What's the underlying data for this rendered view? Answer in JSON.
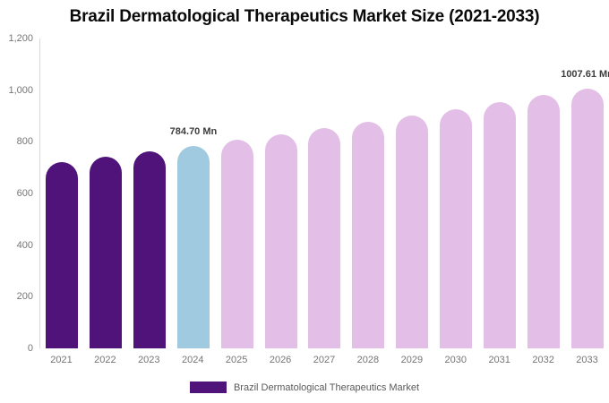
{
  "page": {
    "background": "#ffffff"
  },
  "chart_data": {
    "type": "bar",
    "title": "Brazil Dermatological Therapeutics Market Size (2021-2033)",
    "unit": "Mn",
    "categories": [
      "2021",
      "2022",
      "2023",
      "2024",
      "2025",
      "2026",
      "2027",
      "2028",
      "2029",
      "2030",
      "2031",
      "2032",
      "2033"
    ],
    "series": [
      {
        "name": "Brazil Dermatological Therapeutics Market",
        "values": [
          722,
          742,
          763,
          784.7,
          807,
          830,
          853,
          877,
          902,
          927,
          953,
          980,
          1007.61
        ]
      }
    ],
    "point_labels": [
      "",
      "",
      "",
      "784.70 Mn",
      "",
      "",
      "",
      "",
      "",
      "",
      "",
      "",
      "1007.61 Mn"
    ],
    "bar_roles": [
      "historical",
      "historical",
      "historical",
      "base_year",
      "forecast",
      "forecast",
      "forecast",
      "forecast",
      "forecast",
      "forecast",
      "forecast",
      "forecast",
      "forecast"
    ],
    "colors": {
      "historical": "#4F137A",
      "base_year": "#A0CADF",
      "forecast": "#E3BEE6",
      "axis_line": "#D9D9D9",
      "tick_text": "#757575",
      "data_label_text": "#3D3D3D",
      "legend_text": "#595959",
      "title_text": "#0A0A0A"
    },
    "xlabel": "",
    "ylabel": "",
    "ylim": [
      0,
      1200
    ],
    "yticks": [
      "1,200",
      "1,000",
      "800",
      "600",
      "400",
      "200",
      "0"
    ],
    "grid": false,
    "legend_position": "bottom",
    "legend": [
      {
        "label": "Brazil Dermatological Therapeutics Market",
        "color": "#4F137A"
      }
    ]
  }
}
